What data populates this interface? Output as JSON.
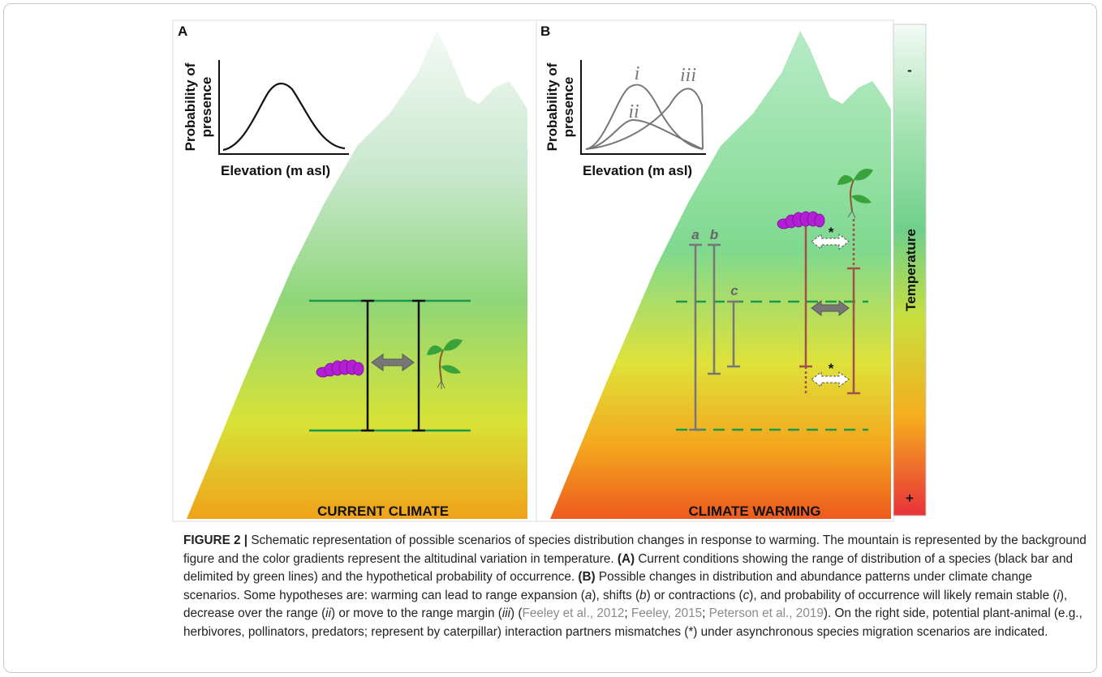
{
  "figure": {
    "panel_a": {
      "label": "A",
      "y_axis_label": [
        "Probability of",
        "presence"
      ],
      "x_axis_label": "Elevation (m asl)",
      "footer": "CURRENT CLIMATE"
    },
    "panel_b": {
      "label": "B",
      "y_axis_label": [
        "Probability of",
        "presence"
      ],
      "x_axis_label": "Elevation (m asl)",
      "curve_labels": [
        "i",
        "ii",
        "iii"
      ],
      "range_labels": [
        "a",
        "b",
        "c"
      ],
      "mismatch_marks": [
        "*",
        "*"
      ],
      "footer": "CLIMATE WARMING"
    },
    "colorbar": {
      "title": "Temperature",
      "top": "-",
      "bottom": "+"
    }
  },
  "caption": {
    "segments": [
      "FIGURE 2 |",
      " Schematic representation of possible scenarios of species distribution changes in response to warming. The mountain is represented by the background figure and the color gradients represent the altitudinal variation in temperature. ",
      "(A)",
      " Current conditions showing the range of distribution of a species (black bar and delimited by green lines) and the hypothetical probability of occurrence. ",
      "(B)",
      " Possible changes in distribution and abundance patterns under climate change scenarios. Some hypotheses are: warming can lead to range expansion (",
      "a",
      "), shifts (",
      "b",
      ") or contractions (",
      "c",
      "), and probability of occurrence will likely remain stable (",
      "i",
      "), decrease over the range (",
      "ii",
      ") or move to the range margin (",
      "iii",
      ") (",
      "Feeley et al., 2012",
      "; ",
      "Feeley, 2015",
      "; ",
      "Peterson et al., 2019",
      "). On the right side, potential plant-animal (e.g., herbivores, pollinators, predators; represent by caterpillar) interaction partners mismatches (*) under asynchronous species migration scenarios are indicated."
    ]
  }
}
